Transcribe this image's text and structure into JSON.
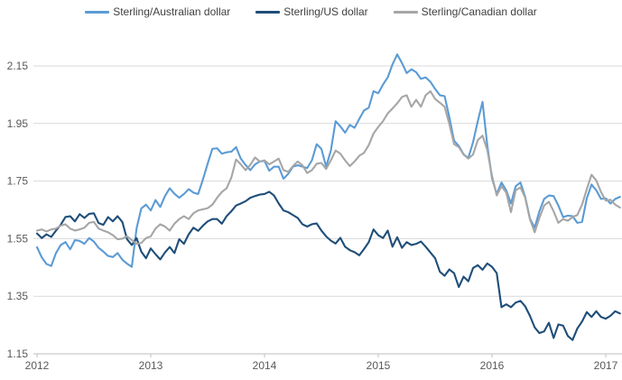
{
  "chart_data": {
    "type": "line",
    "title": "",
    "xlabel": "",
    "ylabel": "",
    "ylim": [
      1.15,
      2.15
    ],
    "xlim": [
      2012,
      2017.15
    ],
    "grid": "horizontal",
    "legend_position": "top",
    "y_tick_labels": [
      "2.15",
      "1.95",
      "1.75",
      "1.55",
      "1.35",
      "1.15"
    ],
    "y_ticks": [
      2.15,
      1.95,
      1.75,
      1.55,
      1.35,
      1.15
    ],
    "x_tick_labels": [
      "2012",
      "2013",
      "2014",
      "2015",
      "2016",
      "2017"
    ],
    "x_ticks": [
      2012,
      2013,
      2014,
      2015,
      2016,
      2017
    ],
    "x_start": 2012.0,
    "x_step": 0.0416667,
    "series": [
      {
        "name": "Sterling/Australian dollar",
        "color": "#5B9BD5",
        "values": [
          1.52,
          1.485,
          1.462,
          1.455,
          1.5,
          1.528,
          1.538,
          1.513,
          1.545,
          1.542,
          1.532,
          1.552,
          1.54,
          1.518,
          1.505,
          1.49,
          1.486,
          1.5,
          1.477,
          1.463,
          1.452,
          1.585,
          1.655,
          1.668,
          1.648,
          1.684,
          1.66,
          1.698,
          1.725,
          1.706,
          1.692,
          1.705,
          1.722,
          1.71,
          1.705,
          1.755,
          1.81,
          1.862,
          1.864,
          1.845,
          1.85,
          1.852,
          1.868,
          1.828,
          1.806,
          1.788,
          1.808,
          1.818,
          1.82,
          1.786,
          1.8,
          1.8,
          1.758,
          1.775,
          1.8,
          1.805,
          1.8,
          1.795,
          1.822,
          1.878,
          1.862,
          1.8,
          1.856,
          1.958,
          1.94,
          1.918,
          1.945,
          1.935,
          1.966,
          1.995,
          2.005,
          2.062,
          2.055,
          2.085,
          2.11,
          2.155,
          2.19,
          2.16,
          2.125,
          2.138,
          2.128,
          2.105,
          2.11,
          2.095,
          2.07,
          2.048,
          2.045,
          1.972,
          1.89,
          1.872,
          1.843,
          1.83,
          1.885,
          1.958,
          2.025,
          1.875,
          1.76,
          1.705,
          1.745,
          1.718,
          1.672,
          1.732,
          1.745,
          1.695,
          1.62,
          1.588,
          1.645,
          1.688,
          1.7,
          1.698,
          1.665,
          1.625,
          1.63,
          1.628,
          1.605,
          1.608,
          1.69,
          1.738,
          1.718,
          1.688,
          1.69,
          1.672,
          1.688,
          1.695
        ]
      },
      {
        "name": "Sterling/US dollar",
        "color": "#1F4E79",
        "values": [
          1.568,
          1.552,
          1.565,
          1.556,
          1.578,
          1.598,
          1.625,
          1.628,
          1.61,
          1.635,
          1.622,
          1.636,
          1.638,
          1.604,
          1.598,
          1.625,
          1.61,
          1.628,
          1.608,
          1.548,
          1.528,
          1.552,
          1.505,
          1.482,
          1.516,
          1.496,
          1.478,
          1.502,
          1.521,
          1.5,
          1.548,
          1.532,
          1.565,
          1.588,
          1.577,
          1.595,
          1.61,
          1.618,
          1.618,
          1.602,
          1.628,
          1.645,
          1.665,
          1.672,
          1.68,
          1.692,
          1.698,
          1.703,
          1.705,
          1.713,
          1.7,
          1.672,
          1.648,
          1.642,
          1.632,
          1.622,
          1.6,
          1.592,
          1.6,
          1.603,
          1.578,
          1.558,
          1.543,
          1.533,
          1.553,
          1.522,
          1.51,
          1.503,
          1.492,
          1.514,
          1.538,
          1.582,
          1.562,
          1.552,
          1.578,
          1.522,
          1.555,
          1.518,
          1.538,
          1.528,
          1.532,
          1.54,
          1.522,
          1.502,
          1.482,
          1.435,
          1.421,
          1.443,
          1.43,
          1.382,
          1.418,
          1.402,
          1.448,
          1.458,
          1.442,
          1.464,
          1.452,
          1.43,
          1.312,
          1.322,
          1.312,
          1.328,
          1.334,
          1.315,
          1.282,
          1.242,
          1.222,
          1.228,
          1.258,
          1.205,
          1.252,
          1.248,
          1.212,
          1.198,
          1.238,
          1.262,
          1.295,
          1.278,
          1.298,
          1.278,
          1.272,
          1.282,
          1.298,
          1.29
        ]
      },
      {
        "name": "Sterling/Canadian dollar",
        "color": "#A6A6A6",
        "values": [
          1.578,
          1.582,
          1.575,
          1.582,
          1.585,
          1.595,
          1.6,
          1.585,
          1.578,
          1.582,
          1.588,
          1.605,
          1.608,
          1.585,
          1.578,
          1.572,
          1.562,
          1.548,
          1.55,
          1.558,
          1.545,
          1.532,
          1.535,
          1.552,
          1.558,
          1.585,
          1.6,
          1.592,
          1.578,
          1.602,
          1.618,
          1.628,
          1.618,
          1.638,
          1.648,
          1.652,
          1.656,
          1.668,
          1.692,
          1.712,
          1.725,
          1.762,
          1.825,
          1.808,
          1.788,
          1.806,
          1.832,
          1.818,
          1.822,
          1.808,
          1.818,
          1.828,
          1.788,
          1.782,
          1.802,
          1.818,
          1.805,
          1.778,
          1.788,
          1.81,
          1.813,
          1.792,
          1.822,
          1.856,
          1.845,
          1.822,
          1.802,
          1.818,
          1.838,
          1.848,
          1.875,
          1.915,
          1.938,
          1.958,
          1.985,
          2.002,
          2.02,
          2.042,
          2.048,
          2.008,
          2.032,
          2.008,
          2.048,
          2.062,
          2.035,
          2.022,
          2.008,
          1.948,
          1.878,
          1.868,
          1.842,
          1.828,
          1.842,
          1.892,
          1.908,
          1.858,
          1.768,
          1.7,
          1.732,
          1.71,
          1.642,
          1.718,
          1.728,
          1.692,
          1.618,
          1.572,
          1.622,
          1.665,
          1.678,
          1.645,
          1.605,
          1.618,
          1.612,
          1.625,
          1.632,
          1.668,
          1.722,
          1.772,
          1.752,
          1.712,
          1.682,
          1.685,
          1.668,
          1.658
        ]
      }
    ]
  },
  "colors": {
    "background": "#ffffff",
    "gridline": "#D9D9D9",
    "axis_line": "#BFBFBF",
    "tick_mark": "#BFBFBF",
    "axis_label": "#595959",
    "legend_text": "#404040"
  }
}
